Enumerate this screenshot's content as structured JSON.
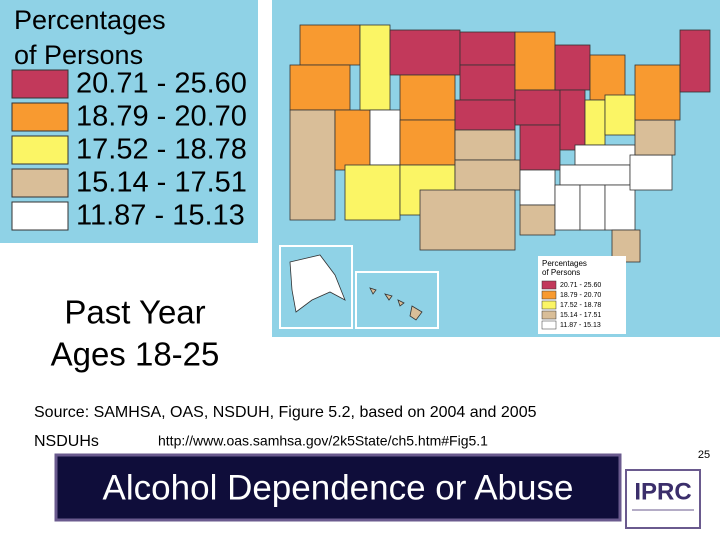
{
  "legend": {
    "title_line1": "Percentages",
    "title_line2": "of Persons",
    "items": [
      {
        "label": "20.71 - 25.60",
        "color": "#c2395b"
      },
      {
        "label": "18.79 - 20.70",
        "color": "#f89a30"
      },
      {
        "label": "17.52 - 18.78",
        "color": "#fbf565"
      },
      {
        "label": "15.14 - 17.51",
        "color": "#d9be98"
      },
      {
        "label": "11.87 - 15.13",
        "color": "#ffffff"
      }
    ]
  },
  "caption": {
    "line1": "Past Year",
    "line2": "Ages 18-25"
  },
  "source": {
    "line1": "Source: SAMHSA, OAS, NSDUH, Figure 5.2, based on 2004 and 2005",
    "line2": "NSDUHs",
    "url": "http://www.oas.samhsa.gov/2k5State/ch5.htm#Fig5.1"
  },
  "slide_number": "25",
  "footer": {
    "title": "Alcohol Dependence or Abuse",
    "logo": "IPRC"
  }
}
